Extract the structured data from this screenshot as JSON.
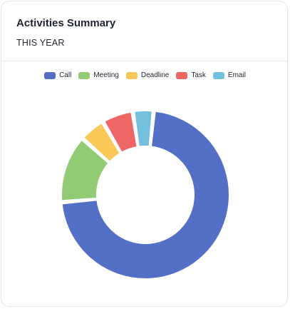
{
  "card": {
    "title": "Activities Summary",
    "subtitle": "THIS YEAR"
  },
  "chart_data": {
    "type": "pie",
    "variant": "donut",
    "title": "",
    "legend_position": "top",
    "categories": [
      "Call",
      "Meeting",
      "Deadline",
      "Task",
      "Email"
    ],
    "values": [
      72,
      13,
      5,
      6,
      4
    ],
    "colors": [
      "#5470c6",
      "#91cc75",
      "#fac858",
      "#ee6666",
      "#73c0de"
    ]
  }
}
